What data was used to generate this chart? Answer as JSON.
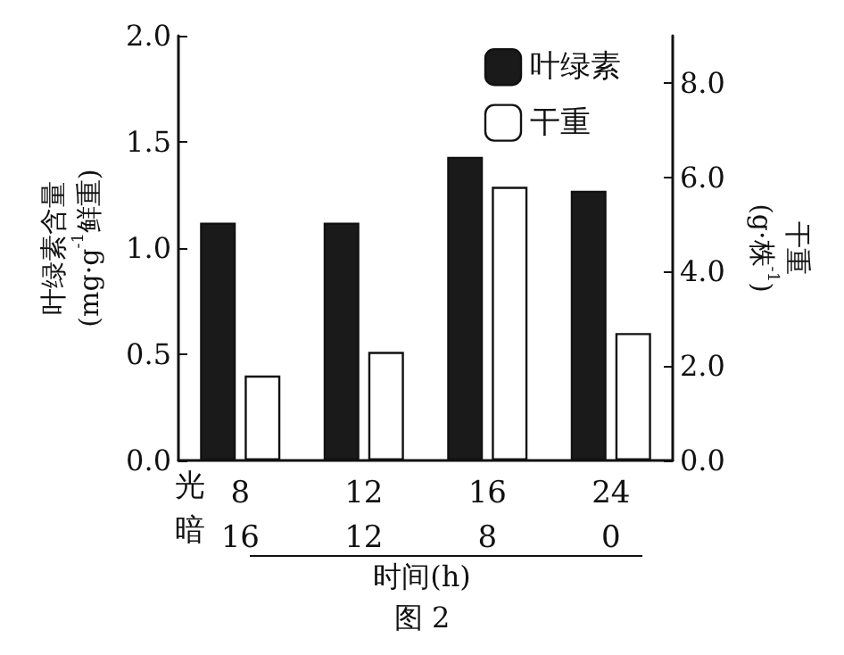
{
  "chart_data": {
    "type": "bar",
    "title": null,
    "xlabel": "时间(h)",
    "ylabel": "叶绿素含量\n(mg·g$^{-1}$鲜重)",
    "y2label": "干重\n(g·株$^{-1}$)",
    "categories": [
      "8\n16",
      "12\n12",
      "16\n8",
      "24\n0"
    ],
    "series": [
      {
        "name": "叶绿素",
        "color": "#1a1a1a",
        "values": [
          1.12,
          1.12,
          1.43,
          1.27
        ]
      },
      {
        "name": "干重",
        "color": "#ffffff",
        "axis": "y2",
        "values": [
          1.8,
          2.3,
          5.8,
          2.7
        ]
      }
    ],
    "ylim": [
      0,
      2.0
    ],
    "yticks": [
      {
        "value": 0,
        "label": "0.0"
      },
      {
        "value": 0.5,
        "label": "0.5"
      },
      {
        "value": 1.0,
        "label": "1.0"
      },
      {
        "value": 1.5,
        "label": "1.5"
      },
      {
        "value": 2.0,
        "label": "2.0"
      }
    ],
    "y2lim": [
      0,
      9.0
    ],
    "y2ticks": [
      {
        "value": 0,
        "label": "0.0"
      },
      {
        "value": 2,
        "label": "2.0"
      },
      {
        "value": 4,
        "label": "4.0"
      },
      {
        "value": 6,
        "label": "6.0"
      },
      {
        "value": 8,
        "label": "8.0"
      }
    ],
    "legend": "top right",
    "grid": false,
    "annotations": [
      "光",
      "暗",
      "图 2"
    ]
  }
}
